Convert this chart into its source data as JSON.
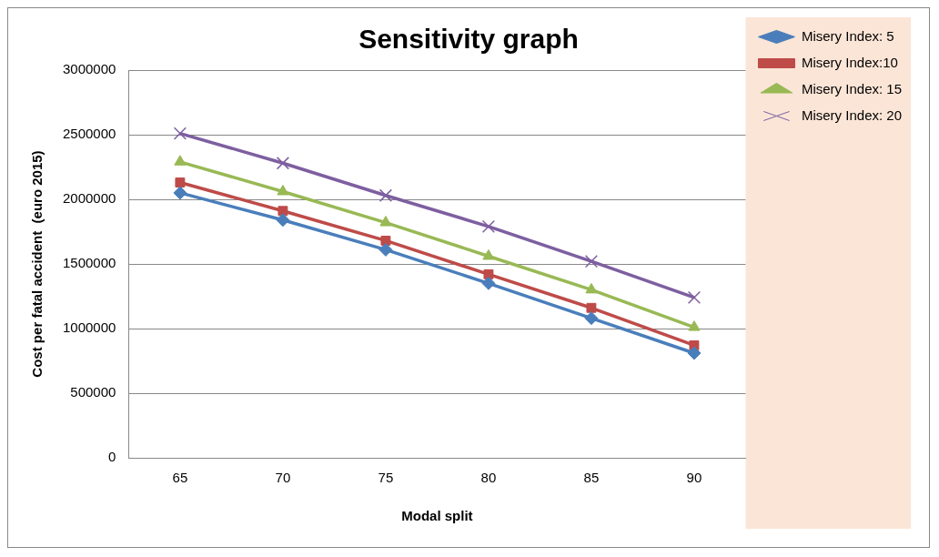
{
  "chart_data": {
    "type": "line",
    "title": "Sensitivity graph",
    "xlabel": "Modal split",
    "ylabel": "Cost per fatal accident  (euro 2015)",
    "categories": [
      "65",
      "70",
      "75",
      "80",
      "85",
      "90"
    ],
    "series": [
      {
        "name": "Misery Index: 5",
        "color": "#4a7ebb",
        "marker": "diamond",
        "values": [
          2050000,
          1840000,
          1610000,
          1350000,
          1080000,
          810000
        ]
      },
      {
        "name": "Misery Index:10",
        "color": "#be4b48",
        "marker": "square",
        "values": [
          2130000,
          1910000,
          1680000,
          1420000,
          1160000,
          870000
        ]
      },
      {
        "name": "Misery Index: 15",
        "color": "#98b954",
        "marker": "triangle",
        "values": [
          2290000,
          2060000,
          1820000,
          1560000,
          1300000,
          1010000
        ]
      },
      {
        "name": "Misery Index: 20",
        "color": "#7d5fa0",
        "marker": "cross",
        "values": [
          2510000,
          2280000,
          2030000,
          1790000,
          1520000,
          1240000
        ]
      }
    ],
    "ylim": [
      0,
      3000000
    ],
    "yticks": [
      0,
      500000,
      1000000,
      1500000,
      2000000,
      2500000,
      3000000
    ],
    "grid": "y",
    "legend": "top right"
  }
}
